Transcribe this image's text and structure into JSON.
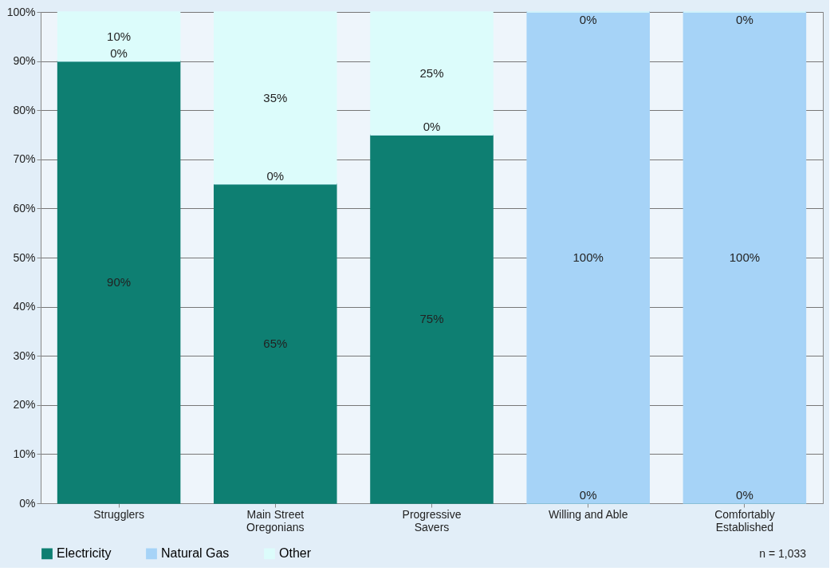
{
  "chart_data": {
    "type": "bar",
    "stacked": true,
    "categories": [
      "Strugglers",
      "Main Street\nOregonians",
      "Progressive\nSavers",
      "Willing and Able",
      "Comfortably\nEstablished"
    ],
    "series": [
      {
        "name": "Electricity",
        "color": "#0e7f72",
        "values": [
          90,
          65,
          75,
          0,
          0
        ],
        "value_labels": [
          "90%",
          "65%",
          "75%",
          "0%",
          "0%"
        ]
      },
      {
        "name": "Natural Gas",
        "color": "#a6d3f7",
        "values": [
          0,
          0,
          0,
          100,
          100
        ],
        "value_labels": [
          "0%",
          "0%",
          "0%",
          "100%",
          "100%"
        ]
      },
      {
        "name": "Other",
        "color": "#dcfcfb",
        "values": [
          10,
          35,
          25,
          0,
          0
        ],
        "value_labels": [
          "10%",
          "35%",
          "25%",
          "0%",
          "0%"
        ]
      }
    ],
    "ylim": [
      0,
      100
    ],
    "yticks": [
      {
        "value": 0,
        "label": "0%"
      },
      {
        "value": 10,
        "label": "10%"
      },
      {
        "value": 20,
        "label": "20%"
      },
      {
        "value": 30,
        "label": "30%"
      },
      {
        "value": 40,
        "label": "40%"
      },
      {
        "value": 50,
        "label": "50%"
      },
      {
        "value": 60,
        "label": "60%"
      },
      {
        "value": 70,
        "label": "70%"
      },
      {
        "value": 80,
        "label": "80%"
      },
      {
        "value": 90,
        "label": "90%"
      },
      {
        "value": 100,
        "label": "100%"
      }
    ],
    "grid": "y",
    "legend": "bottom",
    "annotations": [
      "n = 1,033"
    ]
  }
}
